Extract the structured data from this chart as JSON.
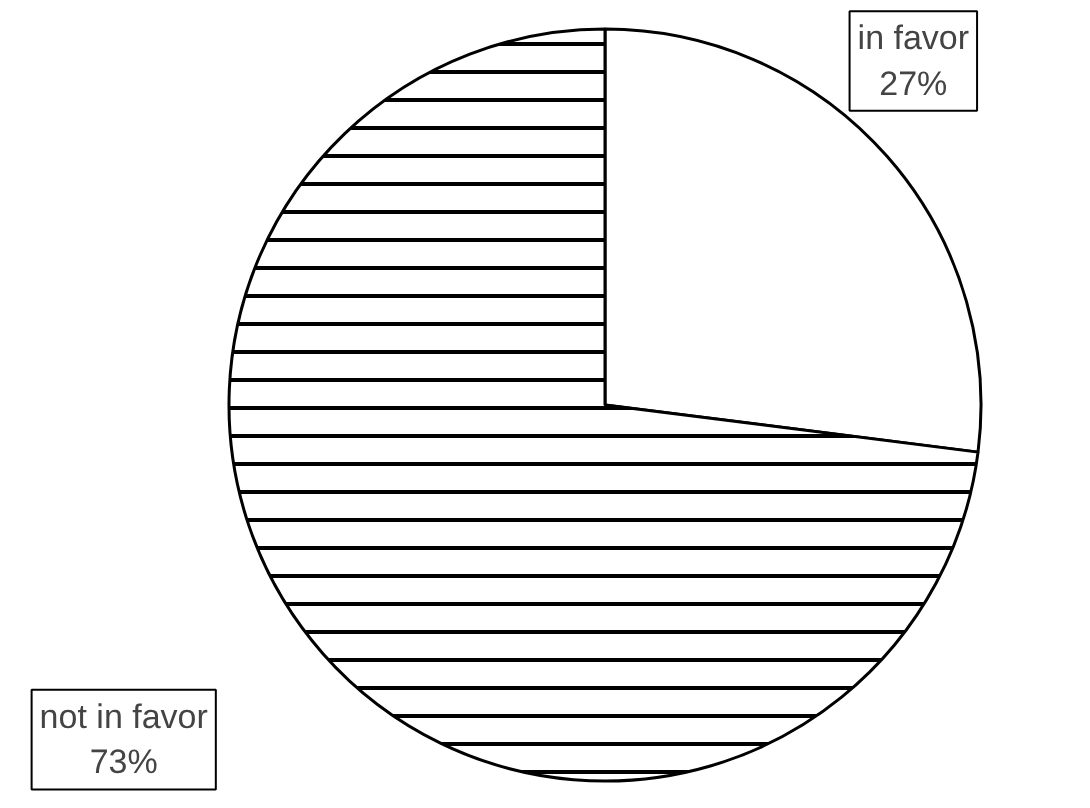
{
  "chart_data": {
    "type": "pie",
    "categories": [
      "in favor",
      "not in favor"
    ],
    "values": [
      27,
      73
    ],
    "colors": [
      "#ffffff",
      "#ffffff"
    ],
    "value_labels": [
      "27%",
      "73%"
    ]
  }
}
